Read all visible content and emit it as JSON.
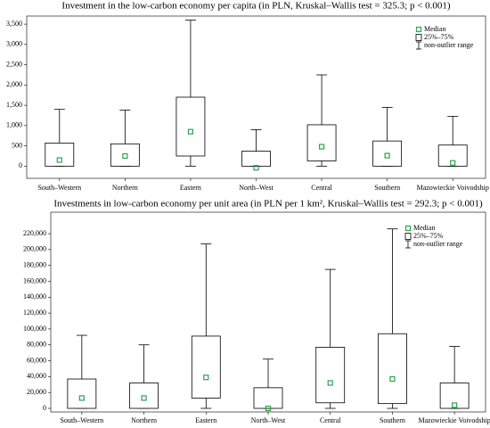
{
  "chart_data": [
    {
      "type": "box",
      "title": "Investment in the low-carbon economy per capita (in PLN, Kruskal–Wallis test = 325.3; p < 0.001)",
      "categories": [
        "South–Western",
        "Northern",
        "Eastern",
        "North–West",
        "Central",
        "Southern",
        "Mazowieckie Voivodship"
      ],
      "min": [
        0,
        0,
        0,
        0,
        0,
        0,
        0
      ],
      "q1": [
        0,
        0,
        250,
        0,
        130,
        0,
        0
      ],
      "median": [
        150,
        250,
        850,
        -40,
        480,
        260,
        80
      ],
      "q3": [
        570,
        550,
        1700,
        370,
        1020,
        620,
        520
      ],
      "max": [
        1400,
        1380,
        3600,
        900,
        2250,
        1450,
        1230
      ],
      "color": "#000000",
      "median_color": "#2ca44e",
      "legend": [
        "Median",
        "25%–75%",
        "non-outlier range"
      ],
      "ylim": [
        -300,
        3700
      ],
      "yticks": [
        0,
        {
          "value": 500,
          "label": "500"
        },
        {
          "value": 1000,
          "label": "1,000"
        },
        {
          "value": 1500,
          "label": "1,500"
        },
        {
          "value": 2000,
          "label": "2,000"
        },
        {
          "value": 2500,
          "label": "2,500"
        },
        {
          "value": 3000,
          "label": "3,000"
        },
        {
          "value": 3500,
          "label": "3,500"
        }
      ]
    },
    {
      "type": "box",
      "title": "Investments in low-carbon economy per unit area (in PLN per 1 km², Kruskal–Wallis test = 292.3; p < 0.001)",
      "categories": [
        "South–Western",
        "Northern",
        "Eastern",
        "North–West",
        "Central",
        "Southern",
        "Mazowieckie Voivodship"
      ],
      "min": [
        0,
        0,
        0,
        0,
        0,
        0,
        0
      ],
      "q1": [
        0,
        0,
        13000,
        0,
        7000,
        6000,
        0
      ],
      "median": [
        13000,
        13000,
        39000,
        0,
        32000,
        37000,
        4000
      ],
      "q3": [
        37000,
        32000,
        91000,
        26000,
        77000,
        94000,
        32000
      ],
      "max": [
        92000,
        80000,
        207000,
        62000,
        175000,
        226000,
        78000
      ],
      "color": "#000000",
      "median_color": "#2ca44e",
      "legend": [
        "Median",
        "25%–75%",
        "non-outlier range"
      ],
      "ylim": [
        -4500,
        247000
      ],
      "yticks": [
        0,
        {
          "value": 20000,
          "label": "20,000"
        },
        {
          "value": 40000,
          "label": "40,000"
        },
        {
          "value": 60000,
          "label": "60,000"
        },
        {
          "value": 80000,
          "label": "80,000"
        },
        {
          "value": 100000,
          "label": "100,000"
        },
        {
          "value": 120000,
          "label": "120,000"
        },
        {
          "value": 140000,
          "label": "140,000"
        },
        {
          "value": 160000,
          "label": "160,000"
        },
        {
          "value": 180000,
          "label": "180,000"
        },
        {
          "value": 200000,
          "label": "200,000"
        },
        {
          "value": 220000,
          "label": "220,000"
        }
      ]
    }
  ]
}
